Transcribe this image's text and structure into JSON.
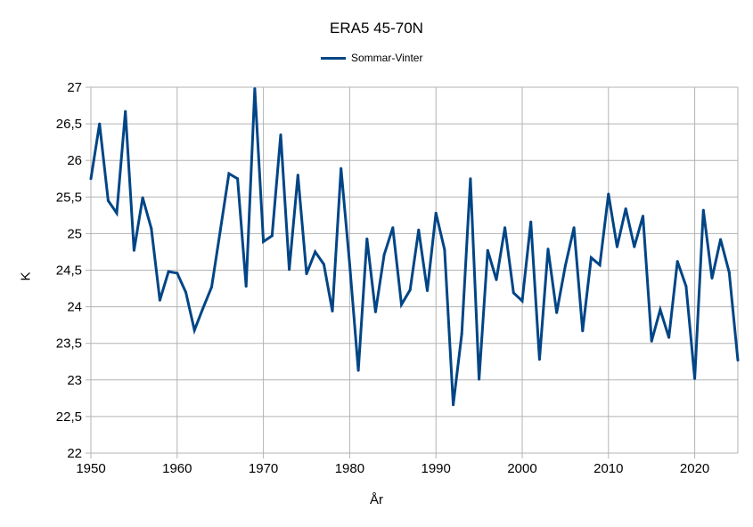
{
  "chart_data": {
    "type": "line",
    "title": "ERA5 45-70N",
    "xlabel": "År",
    "ylabel": "K",
    "xlim": [
      1950,
      2025
    ],
    "ylim": [
      22,
      27
    ],
    "x_ticks": [
      1950,
      1960,
      1970,
      1980,
      1990,
      2000,
      2010,
      2020
    ],
    "x_tick_labels": [
      "1950",
      "1960",
      "1970",
      "1980",
      "1990",
      "2000",
      "2010",
      "2020"
    ],
    "y_ticks": [
      22,
      22.5,
      23,
      23.5,
      24,
      24.5,
      25,
      25.5,
      26,
      26.5,
      27
    ],
    "y_tick_labels": [
      "22",
      "22,5",
      "23",
      "23,5",
      "24",
      "24,5",
      "25",
      "25,5",
      "26",
      "26,5",
      "27"
    ],
    "grid": true,
    "legend_position": "top",
    "series": [
      {
        "name": "Sommar-Vinter",
        "color": "#004586",
        "x": [
          1950,
          1951,
          1952,
          1953,
          1954,
          1955,
          1956,
          1957,
          1958,
          1959,
          1960,
          1961,
          1962,
          1963,
          1964,
          1965,
          1966,
          1967,
          1968,
          1969,
          1970,
          1971,
          1972,
          1973,
          1974,
          1975,
          1976,
          1977,
          1978,
          1979,
          1980,
          1981,
          1982,
          1983,
          1984,
          1985,
          1986,
          1987,
          1988,
          1989,
          1990,
          1991,
          1992,
          1993,
          1994,
          1995,
          1996,
          1997,
          1998,
          1999,
          2000,
          2001,
          2002,
          2003,
          2004,
          2005,
          2006,
          2007,
          2008,
          2009,
          2010,
          2011,
          2012,
          2013,
          2014,
          2015,
          2016,
          2017,
          2018,
          2019,
          2020,
          2021,
          2022,
          2023,
          2024,
          2025
        ],
        "values": [
          25.75,
          26.5,
          25.45,
          25.28,
          26.67,
          24.77,
          25.49,
          25.07,
          24.09,
          24.48,
          24.46,
          24.2,
          23.68,
          23.98,
          24.27,
          25.04,
          25.82,
          25.75,
          24.28,
          26.98,
          24.89,
          24.97,
          26.35,
          24.51,
          25.8,
          24.45,
          24.75,
          24.58,
          23.94,
          25.89,
          24.58,
          23.13,
          24.93,
          23.93,
          24.71,
          25.08,
          24.03,
          24.23,
          25.05,
          24.22,
          25.28,
          24.78,
          22.66,
          23.63,
          25.75,
          23.01,
          24.77,
          24.37,
          25.08,
          24.19,
          24.08,
          25.16,
          23.28,
          24.79,
          23.92,
          24.56,
          25.08,
          23.67,
          24.67,
          24.57,
          25.54,
          24.82,
          25.34,
          24.82,
          25.24,
          23.53,
          23.96,
          23.58,
          24.62,
          24.28,
          23.02,
          25.32,
          24.39,
          24.92,
          24.47,
          23.27
        ]
      }
    ]
  }
}
